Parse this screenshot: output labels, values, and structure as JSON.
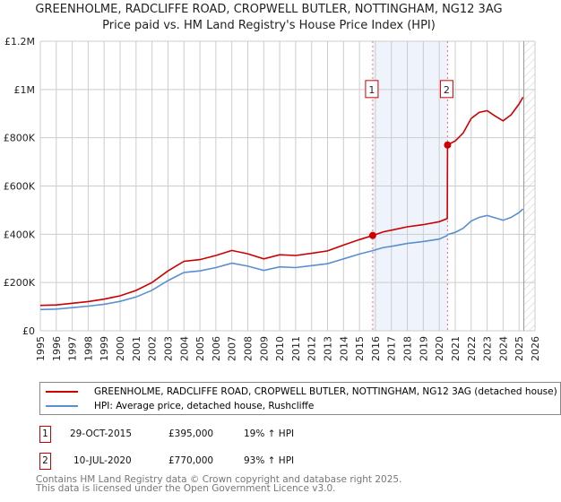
{
  "chart_data": {
    "type": "line",
    "title": "GREENHOLME, RADCLIFFE ROAD, CROPWELL BUTLER, NOTTINGHAM, NG12 3AG",
    "subtitle": "Price paid vs. HM Land Registry's House Price Index (HPI)",
    "xlim": [
      1995,
      2026
    ],
    "ylim": [
      0,
      1200000
    ],
    "x_ticks": [
      "1995",
      "1996",
      "1997",
      "1998",
      "1999",
      "2000",
      "2001",
      "2002",
      "2003",
      "2004",
      "2005",
      "2006",
      "2007",
      "2008",
      "2009",
      "2010",
      "2011",
      "2012",
      "2013",
      "2014",
      "2015",
      "2016",
      "2017",
      "2018",
      "2019",
      "2020",
      "2021",
      "2022",
      "2023",
      "2024",
      "2025",
      "2026"
    ],
    "y_ticks": [
      {
        "v": 0,
        "label": "£0"
      },
      {
        "v": 200000,
        "label": "£200K"
      },
      {
        "v": 400000,
        "label": "£400K"
      },
      {
        "v": 600000,
        "label": "£600K"
      },
      {
        "v": 800000,
        "label": "£800K"
      },
      {
        "v": 1000000,
        "label": "£1M"
      },
      {
        "v": 1200000,
        "label": "£1.2M"
      }
    ],
    "grid": true,
    "shaded_period": [
      2015.83,
      2020.52
    ],
    "forecast_hatch_from": 2025.3,
    "series": [
      {
        "name": "GREENHOLME, RADCLIFFE ROAD, CROPWELL BUTLER, NOTTINGHAM, NG12 3AG (detached house)",
        "color": "#cc0000",
        "x": [
          1995,
          1996,
          1997,
          1998,
          1999,
          2000,
          2001,
          2002,
          2003,
          2004,
          2005,
          2006,
          2007,
          2008,
          2009,
          2010,
          2011,
          2012,
          2013,
          2014,
          2015,
          2015.83,
          2016.5,
          2017,
          2018,
          2019,
          2020,
          2020.5,
          2020.52,
          2021,
          2021.5,
          2022,
          2022.5,
          2023,
          2023.5,
          2024,
          2024.5,
          2025,
          2025.25
        ],
        "y": [
          105000,
          107000,
          114000,
          121000,
          131000,
          145000,
          167000,
          200000,
          248000,
          288000,
          295000,
          312000,
          333000,
          319000,
          298000,
          315000,
          312000,
          321000,
          331000,
          355000,
          378000,
          395000,
          410000,
          417000,
          431000,
          440000,
          452000,
          465000,
          770000,
          787000,
          820000,
          880000,
          905000,
          912000,
          890000,
          870000,
          895000,
          940000,
          968000
        ]
      },
      {
        "name": "HPI: Average price, detached house, Rushcliffe",
        "color": "#5b8fd0",
        "x": [
          1995,
          1996,
          1997,
          1998,
          1999,
          2000,
          2001,
          2002,
          2003,
          2004,
          2005,
          2006,
          2007,
          2008,
          2009,
          2010,
          2011,
          2012,
          2013,
          2014,
          2015,
          2015.83,
          2016.5,
          2017,
          2018,
          2019,
          2020,
          2020.5,
          2020.52,
          2021,
          2021.5,
          2022,
          2022.5,
          2023,
          2023.5,
          2024,
          2024.5,
          2025,
          2025.25
        ],
        "y": [
          88000,
          90000,
          96000,
          102000,
          110000,
          122000,
          140000,
          168000,
          208000,
          242000,
          248000,
          262000,
          280000,
          268000,
          250000,
          265000,
          262000,
          270000,
          278000,
          298000,
          318000,
          332000,
          345000,
          350000,
          362000,
          370000,
          380000,
          395000,
          399000,
          408000,
          425000,
          455000,
          470000,
          478000,
          468000,
          458000,
          470000,
          490000,
          505000
        ]
      }
    ],
    "sales": [
      {
        "id": "1",
        "x": 2015.83,
        "y": 395000,
        "date": "29-OCT-2015",
        "price": "£395,000",
        "hpi": "19% ↑ HPI"
      },
      {
        "id": "2",
        "x": 2020.52,
        "y": 770000,
        "date": "10-JUL-2020",
        "price": "£770,000",
        "hpi": "93% ↑ HPI"
      }
    ]
  },
  "legend": {
    "red_label": "GREENHOLME, RADCLIFFE ROAD, CROPWELL BUTLER, NOTTINGHAM, NG12 3AG (detached house)",
    "blue_label": "HPI: Average price, detached house, Rushcliffe"
  },
  "footer": {
    "line1": "Contains HM Land Registry data © Crown copyright and database right 2025.",
    "line2": "This data is licensed under the Open Government Licence v3.0."
  }
}
